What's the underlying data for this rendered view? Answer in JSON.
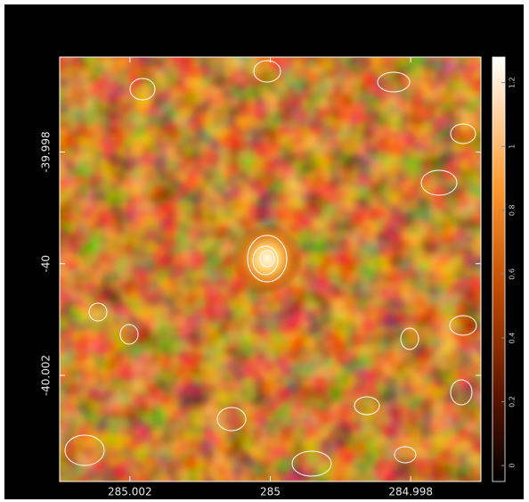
{
  "chart_data": {
    "type": "image",
    "xlim": [
      285.003,
      284.997
    ],
    "xticks": [
      285.002,
      285,
      284.998
    ],
    "ylim": [
      -40.0039,
      -39.9963
    ],
    "yticks": [
      -39.998,
      -40,
      -40.002
    ],
    "colorbar": {
      "lim": [
        -0.05,
        1.28
      ],
      "ticks": [
        0,
        0.2,
        0.4,
        0.6,
        0.8,
        1,
        1.2
      ]
    }
  }
}
